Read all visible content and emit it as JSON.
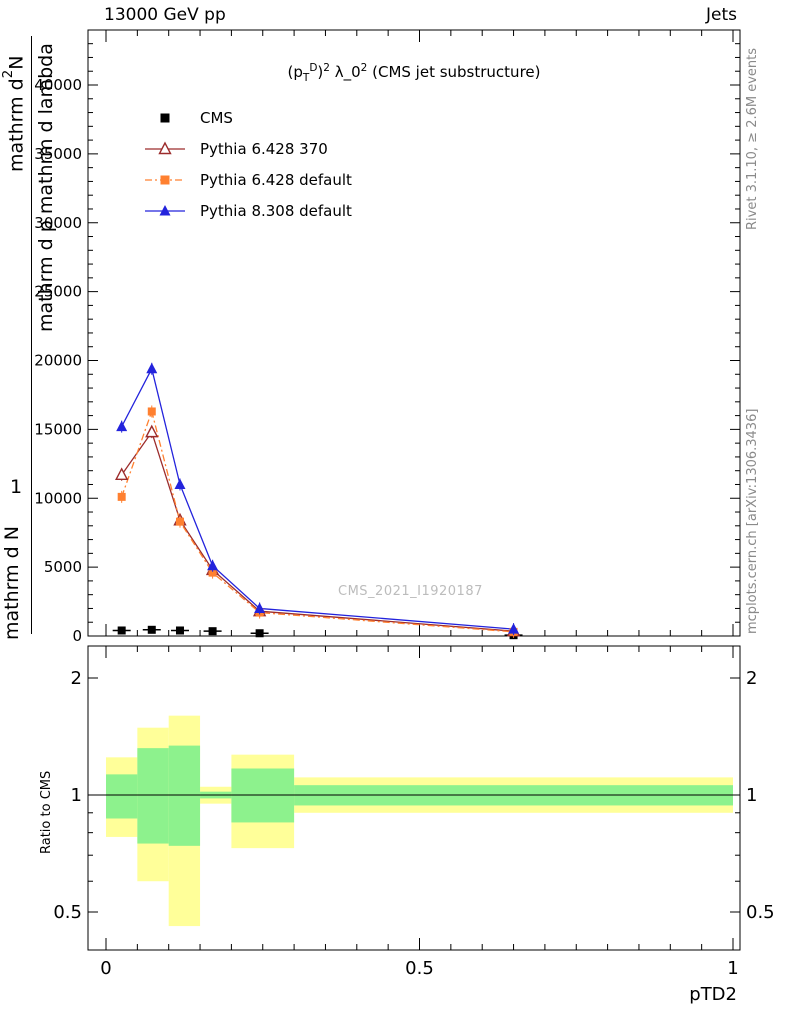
{
  "header": {
    "left": "13000 GeV pp",
    "right": "Jets"
  },
  "side_notes": {
    "rivet": "Rivet 3.1.10, ≥ 2.6M events",
    "mcplots": "mcplots.cern.ch [arXiv:1306.3436]"
  },
  "main_plot": {
    "title_parts": [
      {
        "t": "(p"
      },
      {
        "t": "T",
        "sub": true
      },
      {
        "t": "D",
        "sup": true
      },
      {
        "t": ")"
      },
      {
        "t": "2",
        "sup": true
      },
      {
        "t": " λ_0"
      },
      {
        "t": "2",
        "sup": true
      },
      {
        "t": " (CMS jet substructure)"
      }
    ],
    "watermark": "CMS_2021_I1920187",
    "ylabel": {
      "numerator_parts": [
        {
          "t": "mathrm d"
        },
        {
          "t": "2",
          "sup": true
        },
        {
          "t": "N"
        }
      ],
      "denominator": "mathrm d p mathrm d lambda",
      "one": "1",
      "dn": "mathrm d N"
    }
  },
  "ratio_plot": {
    "ylabel": "Ratio to CMS"
  },
  "x_axis": {
    "label": "pTD2"
  },
  "legend": {
    "entries": [
      {
        "label": "CMS",
        "marker": "square",
        "color": "#000000",
        "line": "none"
      },
      {
        "label": "Pythia 6.428 370",
        "marker": "triangle-open",
        "color": "#9c2c2c",
        "line": "solid"
      },
      {
        "label": "Pythia 6.428 default",
        "marker": "square",
        "color": "#ff8030",
        "line": "dashdot"
      },
      {
        "label": "Pythia 8.308 default",
        "marker": "triangle",
        "color": "#2323dc",
        "line": "solid"
      }
    ]
  },
  "chart_data": {
    "type": "line",
    "title": "(p_T^D)^2 lambda_0^2 (CMS jet substructure)",
    "xlabel": "pTD2",
    "ylabel": "mathrm d2N / mathrm d p mathrm d lambda (garbled LaTeX axis label)",
    "xlim": [
      -0.029,
      1.012
    ],
    "ylim": [
      0,
      44000
    ],
    "x_ticks": [
      0,
      0.5,
      1
    ],
    "x_minor_step": 0.05,
    "y_ticks": [
      0,
      5000,
      10000,
      15000,
      20000,
      25000,
      30000,
      35000,
      40000
    ],
    "y_minor_step": 1000,
    "grid": false,
    "legend_position": "top-left",
    "series": [
      {
        "name": "CMS",
        "color": "#000000",
        "marker": "square",
        "line": "none",
        "x": [
          0.025,
          0.073,
          0.118,
          0.17,
          0.245,
          0.65
        ],
        "y": [
          400,
          450,
          400,
          350,
          200,
          60
        ]
      },
      {
        "name": "Pythia 6.428 370",
        "color": "#9c2c2c",
        "marker": "triangle-open",
        "line": "solid",
        "x": [
          0.025,
          0.073,
          0.118,
          0.17,
          0.245,
          0.65
        ],
        "y": [
          11700,
          14800,
          8400,
          4800,
          1800,
          350
        ]
      },
      {
        "name": "Pythia 6.428 default",
        "color": "#ff8030",
        "marker": "square",
        "line": "dashdot",
        "x": [
          0.025,
          0.073,
          0.118,
          0.17,
          0.245,
          0.65
        ],
        "y": [
          10100,
          16300,
          8300,
          4600,
          1700,
          300
        ]
      },
      {
        "name": "Pythia 8.308 default",
        "color": "#2323dc",
        "marker": "triangle",
        "line": "solid",
        "x": [
          0.025,
          0.073,
          0.118,
          0.17,
          0.245,
          0.65
        ],
        "y": [
          15200,
          19400,
          11000,
          5100,
          2000,
          500
        ]
      }
    ],
    "ratio": {
      "ylabel": "Ratio to CMS",
      "log_scale": true,
      "ylim": [
        0.4,
        2.42
      ],
      "y_ticks": [
        0.5,
        1,
        2
      ],
      "y_minor_ticks": [
        0.6,
        0.7,
        0.8,
        0.9
      ],
      "reference_line": 1,
      "band_colors": {
        "outer": "#ffff99",
        "inner": "#8df28d"
      },
      "bands": [
        {
          "x0": 0,
          "x1": 0.05,
          "outer": [
            0.78,
            1.25
          ],
          "inner": [
            0.87,
            1.13
          ]
        },
        {
          "x0": 0.05,
          "x1": 0.1,
          "outer": [
            0.6,
            1.49
          ],
          "inner": [
            0.75,
            1.32
          ]
        },
        {
          "x0": 0.1,
          "x1": 0.15,
          "outer": [
            0.46,
            1.6
          ],
          "inner": [
            0.74,
            1.34
          ]
        },
        {
          "x0": 0.15,
          "x1": 0.2,
          "outer": [
            0.95,
            1.05
          ],
          "inner": [
            0.98,
            1.02
          ]
        },
        {
          "x0": 0.2,
          "x1": 0.3,
          "outer": [
            0.73,
            1.27
          ],
          "inner": [
            0.85,
            1.17
          ]
        },
        {
          "x0": 0.3,
          "x1": 1,
          "outer": [
            0.9,
            1.11
          ],
          "inner": [
            0.94,
            1.06
          ]
        }
      ]
    }
  }
}
